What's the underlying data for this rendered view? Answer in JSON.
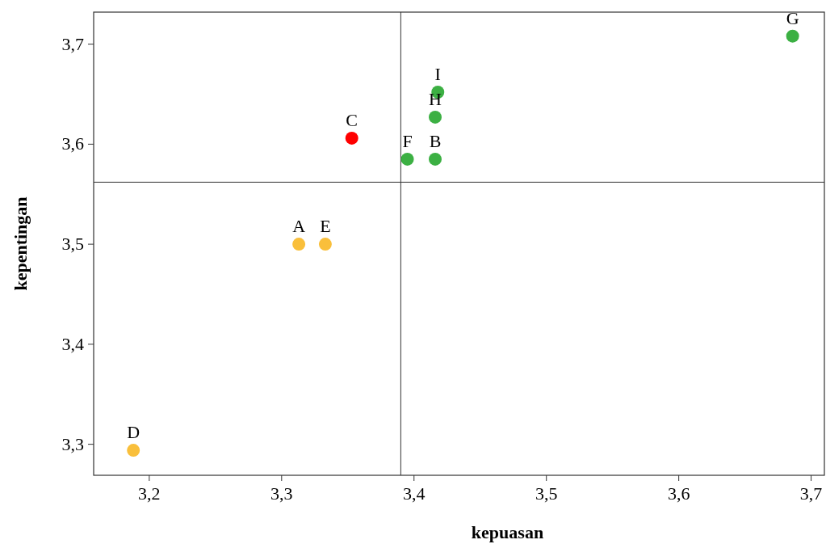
{
  "chart_data": {
    "type": "scatter",
    "xlabel": "kepuasan",
    "ylabel": "kepentingan",
    "xlim": [
      3.158,
      3.71
    ],
    "ylim": [
      3.269,
      3.732
    ],
    "xticks": [
      {
        "value": 3.2,
        "label": "3,2"
      },
      {
        "value": 3.3,
        "label": "3,3"
      },
      {
        "value": 3.4,
        "label": "3,4"
      },
      {
        "value": 3.5,
        "label": "3,5"
      },
      {
        "value": 3.6,
        "label": "3,6"
      },
      {
        "value": 3.7,
        "label": "3,7"
      }
    ],
    "yticks": [
      {
        "value": 3.3,
        "label": "3,3"
      },
      {
        "value": 3.4,
        "label": "3,4"
      },
      {
        "value": 3.5,
        "label": "3,5"
      },
      {
        "value": 3.6,
        "label": "3,6"
      },
      {
        "value": 3.7,
        "label": "3,7"
      }
    ],
    "series": [
      {
        "color": "#f9bf3b",
        "x": [
          3.313,
          3.333,
          3.188
        ],
        "values": [
          3.5,
          3.5,
          3.294
        ]
      },
      {
        "color": "#ff0000",
        "x": [
          3.353
        ],
        "values": [
          3.606
        ]
      },
      {
        "color": "#3cb043",
        "x": [
          3.416,
          3.395,
          3.686,
          3.416,
          3.418
        ],
        "values": [
          3.585,
          3.585,
          3.708,
          3.627,
          3.652
        ]
      }
    ],
    "ref_lines": [
      {
        "axis": "x",
        "value": 3.39
      },
      {
        "axis": "y",
        "value": 3.562
      }
    ],
    "annotations": [
      {
        "text": "A",
        "x": 3.313,
        "y": 3.5
      },
      {
        "text": "B",
        "x": 3.416,
        "y": 3.585
      },
      {
        "text": "C",
        "x": 3.353,
        "y": 3.606
      },
      {
        "text": "D",
        "x": 3.188,
        "y": 3.294
      },
      {
        "text": "E",
        "x": 3.333,
        "y": 3.5
      },
      {
        "text": "F",
        "x": 3.395,
        "y": 3.585
      },
      {
        "text": "G",
        "x": 3.686,
        "y": 3.708
      },
      {
        "text": "H",
        "x": 3.416,
        "y": 3.627
      },
      {
        "text": "I",
        "x": 3.418,
        "y": 3.652
      }
    ],
    "grid": false,
    "marker": "circle"
  }
}
